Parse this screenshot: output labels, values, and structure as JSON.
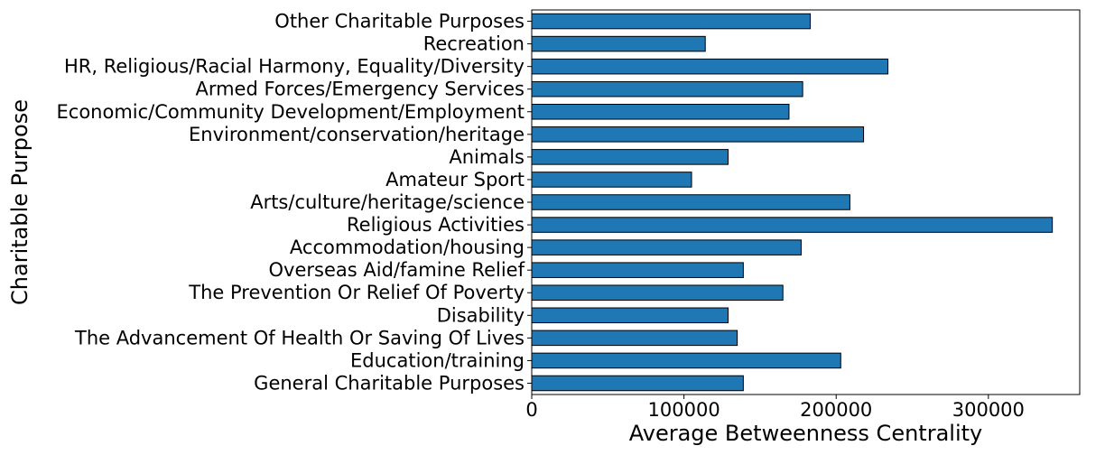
{
  "chart_data": {
    "type": "bar",
    "orientation": "horizontal",
    "title": "",
    "xlabel": "Average Betweenness Centrality",
    "ylabel": "Charitable Purpose",
    "categories": [
      "General Charitable Purposes",
      "Education/training",
      "The Advancement Of Health Or Saving Of Lives",
      "Disability",
      "The Prevention Or Relief Of Poverty",
      "Overseas Aid/famine Relief",
      "Accommodation/housing",
      "Religious Activities",
      "Arts/culture/heritage/science",
      "Amateur Sport",
      "Animals",
      "Environment/conservation/heritage",
      "Economic/Community Development/Employment",
      "Armed Forces/Emergency Services",
      "HR, Religious/Racial Harmony, Equality/Diversity",
      "Recreation",
      "Other Charitable Purposes"
    ],
    "values": [
      139000,
      203000,
      135000,
      129000,
      165000,
      139000,
      177000,
      342000,
      209000,
      105000,
      129000,
      218000,
      169000,
      178000,
      234000,
      114000,
      183000
    ],
    "xlim": [
      0,
      360000
    ],
    "xticks": [
      0,
      100000,
      200000,
      300000
    ],
    "xtick_labels": [
      "0",
      "100000",
      "200000",
      "300000"
    ],
    "grid": false,
    "bar_color": "#1f77b4",
    "edge_color": "#000000"
  }
}
